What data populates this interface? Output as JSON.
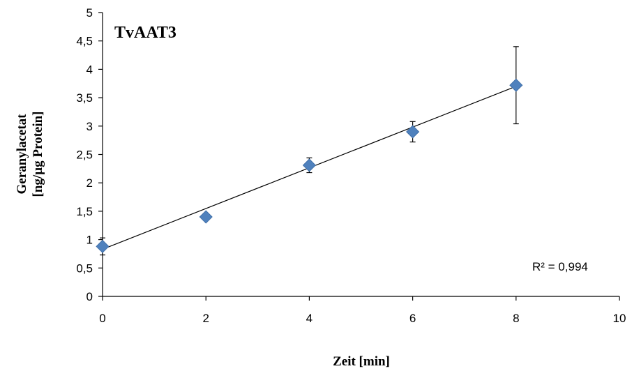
{
  "chart_data": {
    "type": "scatter",
    "title": "TvAAT3",
    "xlabel": "Zeit [min]",
    "ylabel_lines": [
      "Geranylacetat",
      "[ng/µg Protein]"
    ],
    "xlim": [
      0,
      10
    ],
    "ylim": [
      0,
      5
    ],
    "x_ticks": [
      "0",
      "2",
      "4",
      "6",
      "8",
      "10"
    ],
    "y_ticks": [
      "0",
      "0,5",
      "1",
      "1,5",
      "2",
      "2,5",
      "3",
      "3,5",
      "4",
      "4,5",
      "5"
    ],
    "grid": false,
    "series": [
      {
        "x": [
          0,
          2,
          4,
          6,
          8
        ],
        "y": [
          0.88,
          1.4,
          2.31,
          2.9,
          3.72
        ],
        "error": [
          0.15,
          0.04,
          0.13,
          0.18,
          0.68
        ],
        "color": "#4f81bd"
      }
    ],
    "trendline": {
      "type": "linear",
      "x_range": [
        0,
        8
      ],
      "y_start": 0.83,
      "y_end": 3.7,
      "label": "R² = 0,994"
    }
  }
}
